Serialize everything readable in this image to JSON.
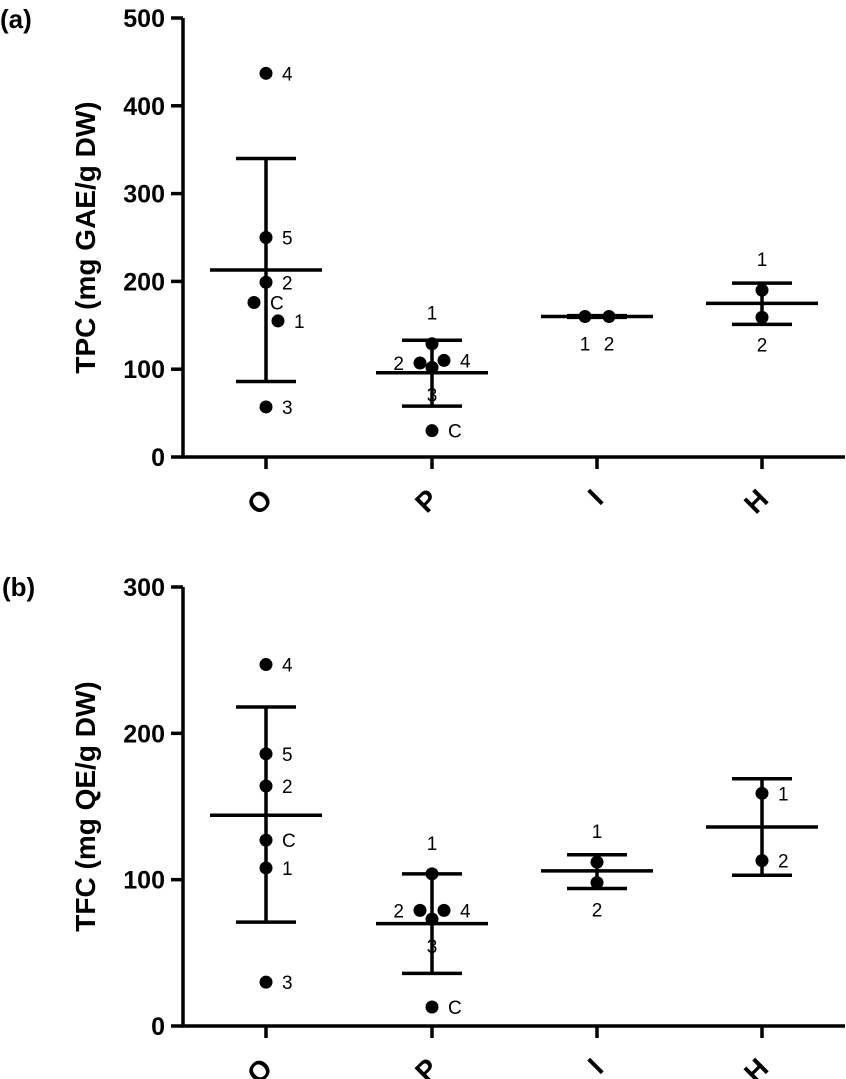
{
  "chart_data": [
    {
      "type": "scatter",
      "panel_label": "(a)",
      "title": "",
      "xlabel": "",
      "ylabel": "TPC (mg GAE/g DW)",
      "ylim": [
        0,
        500
      ],
      "yticks": [
        "0",
        "100",
        "200",
        "300",
        "400",
        "500"
      ],
      "categories": [
        "O",
        "P",
        "I",
        "H"
      ],
      "groups": [
        {
          "category": "O",
          "mean": 213,
          "error_upper": 340,
          "error_lower": 86,
          "points": [
            {
              "label": "4",
              "value": 437,
              "offset": 0,
              "label_side": "right"
            },
            {
              "label": "5",
              "value": 250,
              "offset": 0,
              "label_side": "right"
            },
            {
              "label": "2",
              "value": 199,
              "offset": 0,
              "label_side": "right"
            },
            {
              "label": "C",
              "value": 176,
              "offset": -1,
              "label_side": "right"
            },
            {
              "label": "1",
              "value": 155,
              "offset": 1,
              "label_side": "right"
            },
            {
              "label": "3",
              "value": 57,
              "offset": 0,
              "label_side": "right"
            }
          ]
        },
        {
          "category": "P",
          "mean": 96,
          "error_upper": 133,
          "error_lower": 58,
          "points": [
            {
              "label": "1",
              "value": 129,
              "offset": 0,
              "label_side": "above"
            },
            {
              "label": "2",
              "value": 107,
              "offset": -1,
              "label_side": "left"
            },
            {
              "label": "4",
              "value": 110,
              "offset": 1,
              "label_side": "right"
            },
            {
              "label": "3",
              "value": 102,
              "offset": 0,
              "label_side": "below"
            },
            {
              "label": "C",
              "value": 30,
              "offset": 0,
              "label_side": "right"
            }
          ]
        },
        {
          "category": "I",
          "mean": 160,
          "error_upper": 161,
          "error_lower": 159,
          "points": [
            {
              "label": "1",
              "value": 160,
              "offset": -1,
              "label_side": "below"
            },
            {
              "label": "2",
              "value": 160,
              "offset": 1,
              "label_side": "below"
            }
          ]
        },
        {
          "category": "H",
          "mean": 175,
          "error_upper": 198,
          "error_lower": 151,
          "points": [
            {
              "label": "1",
              "value": 190,
              "offset": 0,
              "label_side": "above"
            },
            {
              "label": "2",
              "value": 159,
              "offset": 0,
              "label_side": "below"
            }
          ]
        }
      ]
    },
    {
      "type": "scatter",
      "panel_label": "(b)",
      "title": "",
      "xlabel": "",
      "ylabel": "TFC (mg QE/g DW)",
      "ylim": [
        0,
        300
      ],
      "yticks": [
        "0",
        "100",
        "200",
        "300"
      ],
      "categories": [
        "O",
        "P",
        "I",
        "H"
      ],
      "groups": [
        {
          "category": "O",
          "mean": 144,
          "error_upper": 218,
          "error_lower": 71,
          "points": [
            {
              "label": "4",
              "value": 247,
              "offset": 0,
              "label_side": "right"
            },
            {
              "label": "5",
              "value": 186,
              "offset": 0,
              "label_side": "right"
            },
            {
              "label": "2",
              "value": 164,
              "offset": 0,
              "label_side": "right"
            },
            {
              "label": "C",
              "value": 127,
              "offset": 0,
              "label_side": "right"
            },
            {
              "label": "1",
              "value": 108,
              "offset": 0,
              "label_side": "right"
            },
            {
              "label": "3",
              "value": 30,
              "offset": 0,
              "label_side": "right"
            }
          ]
        },
        {
          "category": "P",
          "mean": 70,
          "error_upper": 104,
          "error_lower": 36,
          "points": [
            {
              "label": "1",
              "value": 104,
              "offset": 0,
              "label_side": "above"
            },
            {
              "label": "2",
              "value": 79,
              "offset": -1,
              "label_side": "left"
            },
            {
              "label": "4",
              "value": 79,
              "offset": 1,
              "label_side": "right"
            },
            {
              "label": "3",
              "value": 73,
              "offset": 0,
              "label_side": "below"
            },
            {
              "label": "C",
              "value": 13,
              "offset": 0,
              "label_side": "right"
            }
          ]
        },
        {
          "category": "I",
          "mean": 106,
          "error_upper": 117,
          "error_lower": 94,
          "points": [
            {
              "label": "1",
              "value": 112,
              "offset": 0,
              "label_side": "above"
            },
            {
              "label": "2",
              "value": 98,
              "offset": 0,
              "label_side": "below"
            }
          ]
        },
        {
          "category": "H",
          "mean": 136,
          "error_upper": 169,
          "error_lower": 103,
          "points": [
            {
              "label": "1",
              "value": 159,
              "offset": 0,
              "label_side": "right"
            },
            {
              "label": "2",
              "value": 113,
              "offset": 0,
              "label_side": "right"
            }
          ]
        }
      ]
    }
  ]
}
